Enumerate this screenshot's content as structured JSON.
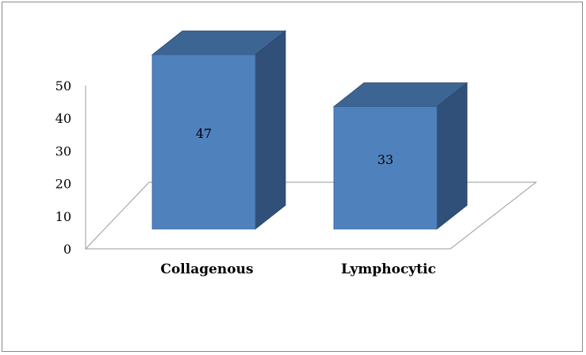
{
  "chart_data": {
    "type": "bar",
    "categories": [
      "Collagenous",
      "Lymphocytic"
    ],
    "values": [
      47,
      33
    ],
    "data_labels": [
      "47",
      "33"
    ],
    "ylim": [
      0,
      50
    ],
    "yticks": [
      "0",
      "10",
      "20",
      "30",
      "40",
      "50"
    ],
    "title": "",
    "xlabel": "",
    "ylabel": "",
    "grid": false,
    "legend": "none",
    "style": "3d-column",
    "colors": {
      "bar_front": "#4f81bd",
      "bar_side": "#30507a",
      "bar_top": "#3d6594",
      "axis": "#9a9a9a"
    }
  }
}
